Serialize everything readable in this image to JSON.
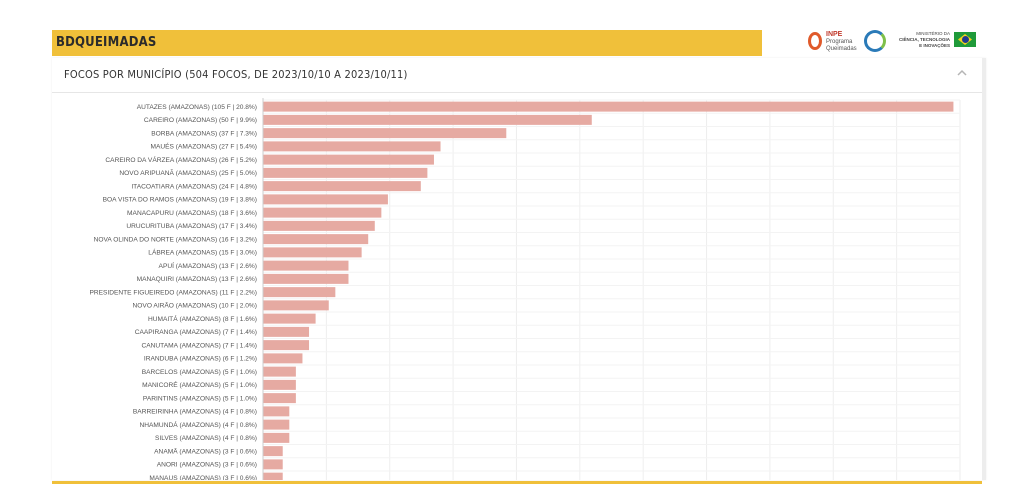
{
  "header": {
    "title": "BDQUEIMADAS"
  },
  "logos": {
    "inpe": {
      "name": "INPE",
      "line1": "Programa",
      "line2": "Queimadas"
    },
    "ministry": {
      "line1": "MINISTÉRIO DA",
      "line2": "CIÊNCIA, TECNOLOGIA",
      "line3": "E INOVAÇÕES"
    }
  },
  "panel": {
    "title": "FOCOS POR MUNICÍPIO (504 FOCOS, DE 2023/10/10 A 2023/10/11)",
    "collapse_icon": "chevron-up-icon"
  },
  "colors": {
    "bar": "#e6aaa2",
    "accent": "#f0c03a"
  },
  "chart_data": {
    "type": "bar",
    "orientation": "horizontal",
    "xlim": [
      0,
      106
    ],
    "grid": true,
    "categories": [
      "AUTAZES (AMAZONAS) (105 F | 20.8%)",
      "CAREIRO (AMAZONAS) (50 F | 9.9%)",
      "BORBA (AMAZONAS) (37 F | 7.3%)",
      "MAUÉS (AMAZONAS) (27 F | 5.4%)",
      "CAREIRO DA VÁRZEA (AMAZONAS) (26 F | 5.2%)",
      "NOVO ARIPUANÃ (AMAZONAS) (25 F | 5.0%)",
      "ITACOATIARA (AMAZONAS) (24 F | 4.8%)",
      "BOA VISTA DO RAMOS (AMAZONAS) (19 F | 3.8%)",
      "MANACAPURU (AMAZONAS) (18 F | 3.6%)",
      "URUCURITUBA (AMAZONAS) (17 F | 3.4%)",
      "NOVA OLINDA DO NORTE (AMAZONAS) (16 F | 3.2%)",
      "LÁBREA (AMAZONAS) (15 F | 3.0%)",
      "APUÍ (AMAZONAS) (13 F | 2.6%)",
      "MANAQUIRI (AMAZONAS) (13 F | 2.6%)",
      "PRESIDENTE FIGUEIREDO (AMAZONAS) (11 F | 2.2%)",
      "NOVO AIRÃO (AMAZONAS) (10 F | 2.0%)",
      "HUMAITÁ (AMAZONAS) (8 F | 1.6%)",
      "CAAPIRANGA (AMAZONAS) (7 F | 1.4%)",
      "CANUTAMA (AMAZONAS) (7 F | 1.4%)",
      "IRANDUBA (AMAZONAS) (6 F | 1.2%)",
      "BARCELOS (AMAZONAS) (5 F | 1.0%)",
      "MANICORÉ (AMAZONAS) (5 F | 1.0%)",
      "PARINTINS (AMAZONAS) (5 F | 1.0%)",
      "BARREIRINHA (AMAZONAS) (4 F | 0.8%)",
      "NHAMUNDÁ (AMAZONAS) (4 F | 0.8%)",
      "SILVES (AMAZONAS) (4 F | 0.8%)",
      "ANAMÃ (AMAZONAS) (3 F | 0.6%)",
      "ANORI (AMAZONAS) (3 F | 0.6%)",
      "MANAUS (AMAZONAS) (3 F | 0.6%)"
    ],
    "values": [
      105,
      50,
      37,
      27,
      26,
      25,
      24,
      19,
      18,
      17,
      16,
      15,
      13,
      13,
      11,
      10,
      8,
      7,
      7,
      6,
      5,
      5,
      5,
      4,
      4,
      4,
      3,
      3,
      3
    ]
  }
}
